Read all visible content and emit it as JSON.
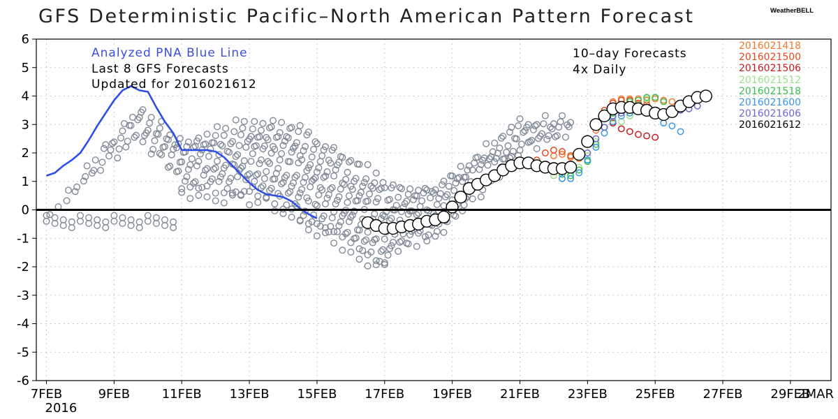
{
  "title": "GFS Deterministic Pacific–North American Pattern Forecast",
  "brand": "WeatherBELL",
  "notes_left": {
    "line1": "Analyzed PNA Blue Line",
    "line1_color": "#3b4fe0",
    "line2": "Last 8 GFS Forecasts",
    "line3": "Updated for 2016021612"
  },
  "notes_right": {
    "line1": "10–day Forecasts",
    "line2": "4x Daily"
  },
  "legend": [
    {
      "label": "2016021418",
      "color": "#f07a2c"
    },
    {
      "label": "2016021500",
      "color": "#e34a1e"
    },
    {
      "label": "2016021506",
      "color": "#c41e1e"
    },
    {
      "label": "2016021512",
      "color": "#9ae28a"
    },
    {
      "label": "2016021518",
      "color": "#3bbf4a"
    },
    {
      "label": "2016021600",
      "color": "#3c96e6"
    },
    {
      "label": "2016021606",
      "color": "#6a68d8"
    },
    {
      "label": "2016021612",
      "color": "#000000"
    }
  ],
  "chart_data": {
    "type": "line",
    "title": "GFS Deterministic Pacific–North American Pattern Forecast",
    "xlabel": "",
    "ylabel": "",
    "x_unit": "day index (0 = 7FEB 2016)",
    "xlim": [
      -0.3,
      23.2
    ],
    "ylim": [
      -6,
      6
    ],
    "y_ticks": [
      6,
      5,
      4,
      3,
      2,
      1,
      0,
      -1,
      -2,
      -3,
      -4,
      -5,
      -6
    ],
    "x_ticks": [
      {
        "x": 0,
        "label": "7FEB",
        "sub": "2016"
      },
      {
        "x": 2,
        "label": "9FEB"
      },
      {
        "x": 4,
        "label": "11FEB"
      },
      {
        "x": 6,
        "label": "13FEB"
      },
      {
        "x": 8,
        "label": "15FEB"
      },
      {
        "x": 10,
        "label": "17FEB"
      },
      {
        "x": 12,
        "label": "19FEB"
      },
      {
        "x": 14,
        "label": "21FEB"
      },
      {
        "x": 16,
        "label": "23FEB"
      },
      {
        "x": 18,
        "label": "25FEB"
      },
      {
        "x": 20,
        "label": "27FEB"
      },
      {
        "x": 22,
        "label": "29FEB"
      },
      {
        "x": 24,
        "label": "2MAR"
      }
    ],
    "grid": true,
    "analyzed": {
      "name": "Analyzed PNA Blue Line",
      "color": "#2f4ee8",
      "x": [
        0,
        0.25,
        0.5,
        0.75,
        1.0,
        1.25,
        1.5,
        1.75,
        2.0,
        2.25,
        2.5,
        2.75,
        3.0,
        3.25,
        3.5,
        3.75,
        4.0,
        4.25,
        4.5,
        4.75,
        5.0,
        5.25,
        5.5,
        5.75,
        6.0,
        6.25,
        6.5,
        6.75,
        7.0,
        7.25,
        7.5,
        7.75,
        8.0,
        8.25,
        8.5,
        8.75,
        9.0
      ],
      "y": [
        1.2,
        1.3,
        1.55,
        1.75,
        2.0,
        2.45,
        2.95,
        3.4,
        3.85,
        4.2,
        4.35,
        4.2,
        4.15,
        3.6,
        3.1,
        2.7,
        2.1,
        2.1,
        2.1,
        2.1,
        2.05,
        1.85,
        1.55,
        1.25,
        0.95,
        0.7,
        0.55,
        0.5,
        0.45,
        0.3,
        0.05,
        -0.15,
        -0.3,
        null,
        null,
        null,
        null
      ]
    },
    "ensemble_gray": {
      "color": "#7f8a96",
      "note": "Gray open circles: prior GFS forecast runs"
    },
    "series": [
      {
        "name": "2016021418",
        "color": "#f07a2c",
        "x": [
          15.0,
          15.25,
          15.5,
          15.75,
          16.0,
          16.25,
          16.5,
          16.75,
          17.0,
          17.25,
          17.5,
          17.75,
          18.0,
          18.25,
          18.5
        ],
        "y": [
          1.9,
          1.95,
          1.85,
          1.8,
          2.3,
          2.8,
          3.4,
          3.8,
          3.9,
          3.9,
          3.9,
          3.85,
          3.9,
          3.85,
          3.8
        ]
      },
      {
        "name": "2016021500",
        "color": "#e34a1e",
        "x": [
          14.5,
          14.75,
          15.0,
          15.25,
          15.5,
          15.75,
          16.0,
          16.25,
          16.5,
          16.75,
          17.0,
          17.25,
          17.5,
          17.75
        ],
        "y": [
          1.75,
          2.0,
          2.1,
          2.05,
          1.9,
          1.9,
          2.5,
          3.0,
          3.5,
          3.75,
          3.85,
          3.85,
          3.75,
          3.7
        ]
      },
      {
        "name": "2016021506",
        "color": "#c41e1e",
        "x": [
          15.75,
          16.0,
          16.25,
          16.5,
          16.75,
          17.0,
          17.25,
          17.5,
          17.75,
          18.0
        ],
        "y": [
          1.9,
          2.4,
          2.9,
          3.2,
          3.05,
          2.85,
          2.75,
          2.65,
          2.6,
          2.55
        ]
      },
      {
        "name": "2016021512",
        "color": "#9ae28a",
        "x": [
          15.0,
          15.25,
          15.5,
          15.75,
          16.0,
          16.25,
          16.5,
          16.75,
          17.0,
          17.25,
          17.5,
          17.75,
          18.0
        ],
        "y": [
          1.2,
          1.1,
          1.3,
          1.5,
          1.9,
          2.4,
          2.9,
          3.2,
          3.1,
          3.3,
          3.6,
          3.9,
          3.95
        ]
      },
      {
        "name": "2016021518",
        "color": "#3bbf4a",
        "x": [
          15.25,
          15.5,
          15.75,
          16.0,
          16.25,
          16.5,
          16.75,
          17.0,
          17.25,
          17.5,
          17.75,
          18.0,
          18.25
        ],
        "y": [
          1.25,
          1.2,
          1.4,
          1.7,
          2.3,
          2.9,
          3.4,
          3.7,
          3.8,
          3.85,
          3.95,
          3.95,
          3.8
        ]
      },
      {
        "name": "2016021600",
        "color": "#3c96e6",
        "x": [
          15.25,
          15.5,
          15.75,
          16.0,
          16.25,
          16.5,
          16.75,
          17.0,
          17.25,
          17.5,
          17.75,
          18.0,
          18.25,
          18.5,
          18.75
        ],
        "y": [
          1.1,
          1.1,
          1.3,
          1.75,
          2.2,
          2.7,
          3.1,
          3.3,
          3.4,
          3.45,
          3.4,
          3.35,
          3.05,
          2.95,
          2.75
        ]
      },
      {
        "name": "2016021606",
        "color": "#6a68d8",
        "x": [
          16.0,
          16.25,
          16.5,
          16.75,
          17.0,
          17.25,
          17.5,
          17.75,
          18.0,
          18.25,
          18.5,
          18.75,
          19.0,
          19.25
        ],
        "y": [
          2.0,
          2.5,
          2.9,
          3.3,
          3.4,
          3.5,
          3.55,
          3.55,
          3.5,
          3.45,
          3.45,
          3.5,
          3.55,
          3.65
        ]
      },
      {
        "name": "2016021612",
        "color": "#000000",
        "x": [
          9.5,
          9.75,
          10.0,
          10.25,
          10.5,
          10.75,
          11.0,
          11.25,
          11.5,
          11.75,
          12.0,
          12.25,
          12.5,
          12.75,
          13.0,
          13.25,
          13.5,
          13.75,
          14.0,
          14.25,
          14.5,
          14.75,
          15.0,
          15.25,
          15.5,
          15.75,
          16.0,
          16.25,
          16.5,
          16.75,
          17.0,
          17.25,
          17.5,
          17.75,
          18.0,
          18.25,
          18.5,
          18.75,
          19.0,
          19.25,
          19.5
        ],
        "y": [
          -0.45,
          -0.55,
          -0.65,
          -0.65,
          -0.6,
          -0.55,
          -0.5,
          -0.4,
          -0.35,
          -0.25,
          0.1,
          0.45,
          0.75,
          0.9,
          1.05,
          1.2,
          1.4,
          1.55,
          1.65,
          1.65,
          1.55,
          1.5,
          1.45,
          1.45,
          1.5,
          1.95,
          2.4,
          3.0,
          3.3,
          3.55,
          3.6,
          3.6,
          3.55,
          3.5,
          3.4,
          3.35,
          3.45,
          3.65,
          3.8,
          3.95,
          4.0
        ]
      }
    ]
  }
}
